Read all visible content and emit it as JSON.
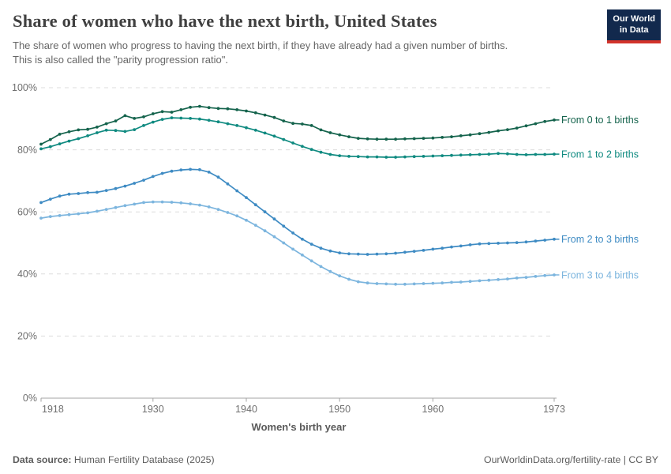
{
  "header": {
    "title": "Share of women who have the next birth, United States",
    "subtitle_line1": "The share of women who progress to having the next birth, if they have already had a given number of births.",
    "subtitle_line2": "This is also called the \"parity progression ratio\".",
    "logo": {
      "line1": "Our World",
      "line2": "in Data"
    }
  },
  "footer": {
    "datasource_label": "Data source:",
    "datasource_value": " Human Fertility Database (2025)",
    "credit": "OurWorldinData.org/fertility-rate | CC BY"
  },
  "colors": {
    "logo_bg": "#12294d",
    "logo_stripe": "#d2332b",
    "gridline": "#dcdcdc",
    "axis": "#a3a3a3",
    "tick_text": "#6f6f6f",
    "axis_title_text": "#5a5a5a"
  },
  "chart_data": {
    "type": "line",
    "title": "Share of women who have the next birth, United States",
    "xlabel": "Women's birth year",
    "ylabel": "",
    "xlim": [
      1918,
      1973
    ],
    "ylim": [
      0,
      100
    ],
    "x_ticks": [
      1918,
      1930,
      1940,
      1950,
      1960,
      1973
    ],
    "y_ticks": [
      0,
      20,
      40,
      60,
      80,
      100
    ],
    "y_tick_suffix": "%",
    "grid": "horizontal-dashed",
    "legend_position": "end-of-line-labels",
    "x": [
      1918,
      1919,
      1920,
      1921,
      1922,
      1923,
      1924,
      1925,
      1926,
      1927,
      1928,
      1929,
      1930,
      1931,
      1932,
      1933,
      1934,
      1935,
      1936,
      1937,
      1938,
      1939,
      1940,
      1941,
      1942,
      1943,
      1944,
      1945,
      1946,
      1947,
      1948,
      1949,
      1950,
      1951,
      1952,
      1953,
      1954,
      1955,
      1956,
      1957,
      1958,
      1959,
      1960,
      1961,
      1962,
      1963,
      1964,
      1965,
      1966,
      1967,
      1968,
      1969,
      1970,
      1971,
      1972,
      1973
    ],
    "series": [
      {
        "name": "From 0 to 1 births",
        "color": "#14634c",
        "values": [
          81.8,
          83.3,
          85.0,
          85.8,
          86.4,
          86.6,
          87.3,
          88.4,
          89.3,
          91.0,
          90.1,
          90.6,
          91.6,
          92.3,
          92.1,
          92.9,
          93.7,
          94.0,
          93.6,
          93.3,
          93.2,
          92.9,
          92.5,
          91.9,
          91.2,
          90.4,
          89.3,
          88.5,
          88.3,
          87.8,
          86.4,
          85.5,
          84.8,
          84.2,
          83.7,
          83.5,
          83.4,
          83.4,
          83.4,
          83.5,
          83.6,
          83.7,
          83.8,
          84.0,
          84.2,
          84.5,
          84.8,
          85.2,
          85.6,
          86.1,
          86.5,
          87.0,
          87.7,
          88.4,
          89.1,
          89.6
        ]
      },
      {
        "name": "From 1 to 2 births",
        "color": "#0f8a80",
        "values": [
          80.3,
          81.0,
          81.9,
          82.8,
          83.6,
          84.5,
          85.5,
          86.3,
          86.2,
          85.9,
          86.5,
          87.8,
          88.9,
          89.8,
          90.3,
          90.2,
          90.1,
          89.9,
          89.5,
          89.0,
          88.4,
          87.8,
          87.1,
          86.3,
          85.4,
          84.4,
          83.3,
          82.2,
          81.1,
          80.1,
          79.2,
          78.5,
          78.1,
          77.9,
          77.8,
          77.7,
          77.7,
          77.6,
          77.6,
          77.7,
          77.8,
          77.9,
          78.0,
          78.1,
          78.2,
          78.3,
          78.4,
          78.5,
          78.6,
          78.8,
          78.7,
          78.5,
          78.4,
          78.5,
          78.5,
          78.6
        ]
      },
      {
        "name": "From 2 to 3 births",
        "color": "#3e8bc3",
        "values": [
          63.0,
          64.1,
          65.1,
          65.7,
          65.9,
          66.2,
          66.3,
          66.9,
          67.5,
          68.3,
          69.2,
          70.2,
          71.4,
          72.4,
          73.1,
          73.5,
          73.7,
          73.6,
          72.8,
          71.2,
          69.0,
          66.8,
          64.6,
          62.3,
          60.0,
          57.7,
          55.4,
          53.2,
          51.2,
          49.6,
          48.3,
          47.4,
          46.8,
          46.5,
          46.4,
          46.3,
          46.4,
          46.5,
          46.7,
          47.0,
          47.3,
          47.6,
          48.0,
          48.3,
          48.7,
          49.0,
          49.4,
          49.7,
          49.8,
          49.9,
          50.0,
          50.1,
          50.3,
          50.6,
          50.9,
          51.2
        ]
      },
      {
        "name": "From 3 to 4 births",
        "color": "#7cb5de",
        "values": [
          58.0,
          58.5,
          58.8,
          59.1,
          59.4,
          59.7,
          60.2,
          60.8,
          61.4,
          62.0,
          62.5,
          63.0,
          63.2,
          63.2,
          63.1,
          62.9,
          62.6,
          62.2,
          61.6,
          60.8,
          59.8,
          58.7,
          57.3,
          55.7,
          53.9,
          52.0,
          50.0,
          48.0,
          46.1,
          44.2,
          42.4,
          40.8,
          39.4,
          38.3,
          37.5,
          37.1,
          36.9,
          36.8,
          36.7,
          36.7,
          36.8,
          36.9,
          37.0,
          37.1,
          37.3,
          37.4,
          37.6,
          37.8,
          38.0,
          38.2,
          38.4,
          38.7,
          38.9,
          39.2,
          39.5,
          39.7
        ]
      }
    ]
  }
}
